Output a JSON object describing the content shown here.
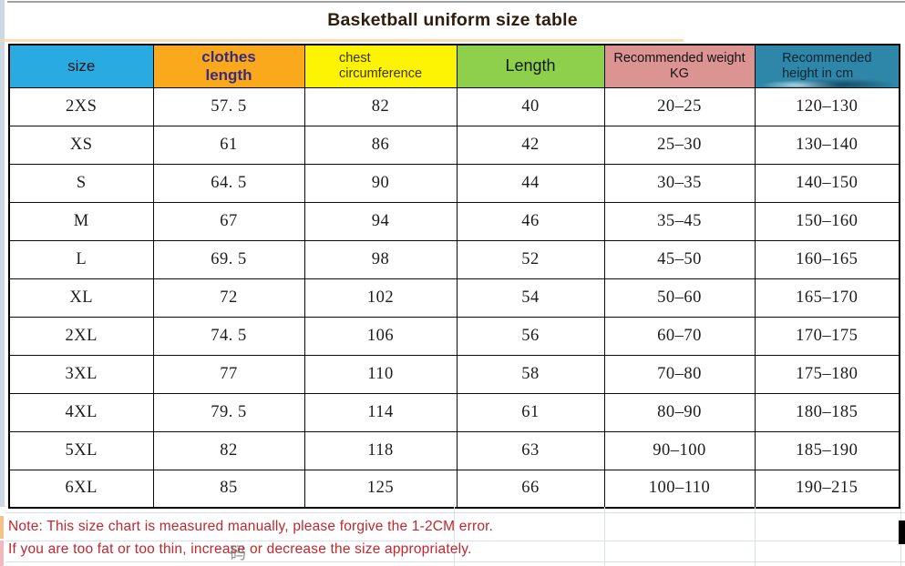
{
  "title": "Basketball uniform size table",
  "table": {
    "headers": [
      {
        "label": "size",
        "bg": "#29abe2",
        "text_color": "#101418"
      },
      {
        "label": "clothes\nlength",
        "bg": "#f9a91b",
        "text_color": "#3b2b7e"
      },
      {
        "label": "chest\ncircumference",
        "bg": "#fdf404",
        "text_color": "#3c3300"
      },
      {
        "label": "Length",
        "bg": "#8ed04c",
        "text_color": "#101810"
      },
      {
        "label": "Recommended weight KG",
        "bg": "#dc9493",
        "text_color": "#141414"
      },
      {
        "label": "Recommended\nheight in cm",
        "bg": "#2e86a8",
        "text_color": "#0c2430"
      }
    ],
    "rows": [
      [
        "2XS",
        "57. 5",
        "82",
        "40",
        "20–25",
        "120–130"
      ],
      [
        "XS",
        "61",
        "86",
        "42",
        "25–30",
        "130–140"
      ],
      [
        "S",
        "64. 5",
        "90",
        "44",
        "30–35",
        "140–150"
      ],
      [
        "M",
        "67",
        "94",
        "46",
        "35–45",
        "150–160"
      ],
      [
        "L",
        "69. 5",
        "98",
        "52",
        "45–50",
        "160–165"
      ],
      [
        "XL",
        "72",
        "102",
        "54",
        "50–60",
        "165–170"
      ],
      [
        "2XL",
        "74. 5",
        "106",
        "56",
        "60–70",
        "170–175"
      ],
      [
        "3XL",
        "77",
        "110",
        "58",
        "70–80",
        "175–180"
      ],
      [
        "4XL",
        "79. 5",
        "114",
        "61",
        "80–90",
        "180–185"
      ],
      [
        "5XL",
        "82",
        "118",
        "63",
        "90–100",
        "185–190"
      ],
      [
        "6XL",
        "85",
        "125",
        "66",
        "100–110",
        "190–215"
      ]
    ]
  },
  "notes": {
    "line1": "Note: This size chart is measured manually, please forgive the 1-2CM error.",
    "line2": "If you are too fat or too thin, increase or decrease the size appropriately.",
    "color": "#c1272d"
  },
  "watermark": {
    "char": "码"
  }
}
